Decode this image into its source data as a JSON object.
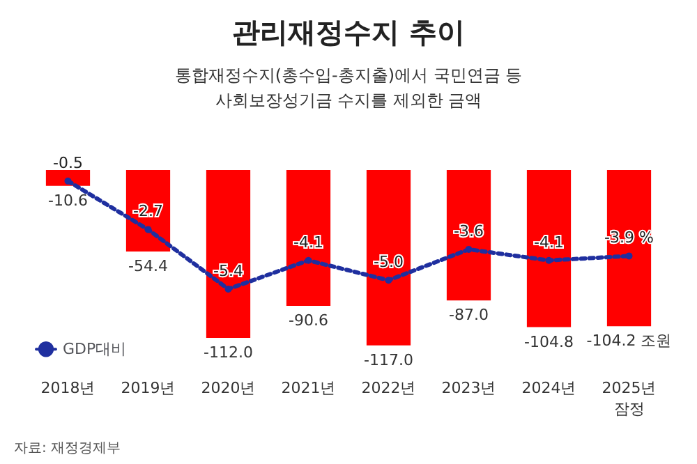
{
  "chart_data": {
    "type": "bar",
    "title": "관리재정수지 추이",
    "subtitle": "통합재정수지(총수입-총지출)에서 국민연금 등\n사회보장성기금 수지를 제외한 금액",
    "categories": [
      "2018년",
      "2019년",
      "2020년",
      "2021년",
      "2022년",
      "2023년",
      "2024년",
      "2025년\n잠정"
    ],
    "series": [
      {
        "color": "#ff0000",
        "values": [
          -10.6,
          -54.4,
          -112.0,
          -90.6,
          -117.0,
          -87.0,
          -104.8,
          -104.2
        ],
        "value_labels": [
          "-10.6",
          "-54.4",
          "-112.0",
          "-90.6",
          "-117.0",
          "-87.0",
          "-104.8",
          "-104.2 조원"
        ]
      },
      {
        "type": "line",
        "name": "GDP대비",
        "axis": "y2",
        "color": "#1f2f9f",
        "values": [
          -0.5,
          -2.7,
          -5.4,
          -4.1,
          -5.0,
          -3.6,
          -4.1,
          -3.9
        ],
        "value_labels": [
          "-0.5",
          "-2.7",
          "-5.4",
          "-4.1",
          "-5.0",
          "-3.6",
          "-4.1",
          "-3.9 %"
        ]
      }
    ],
    "data_labels": true,
    "legend": "left",
    "marker": "circle",
    "line_style": "dotted",
    "annotations": [
      "자료: 재정경제부"
    ]
  }
}
